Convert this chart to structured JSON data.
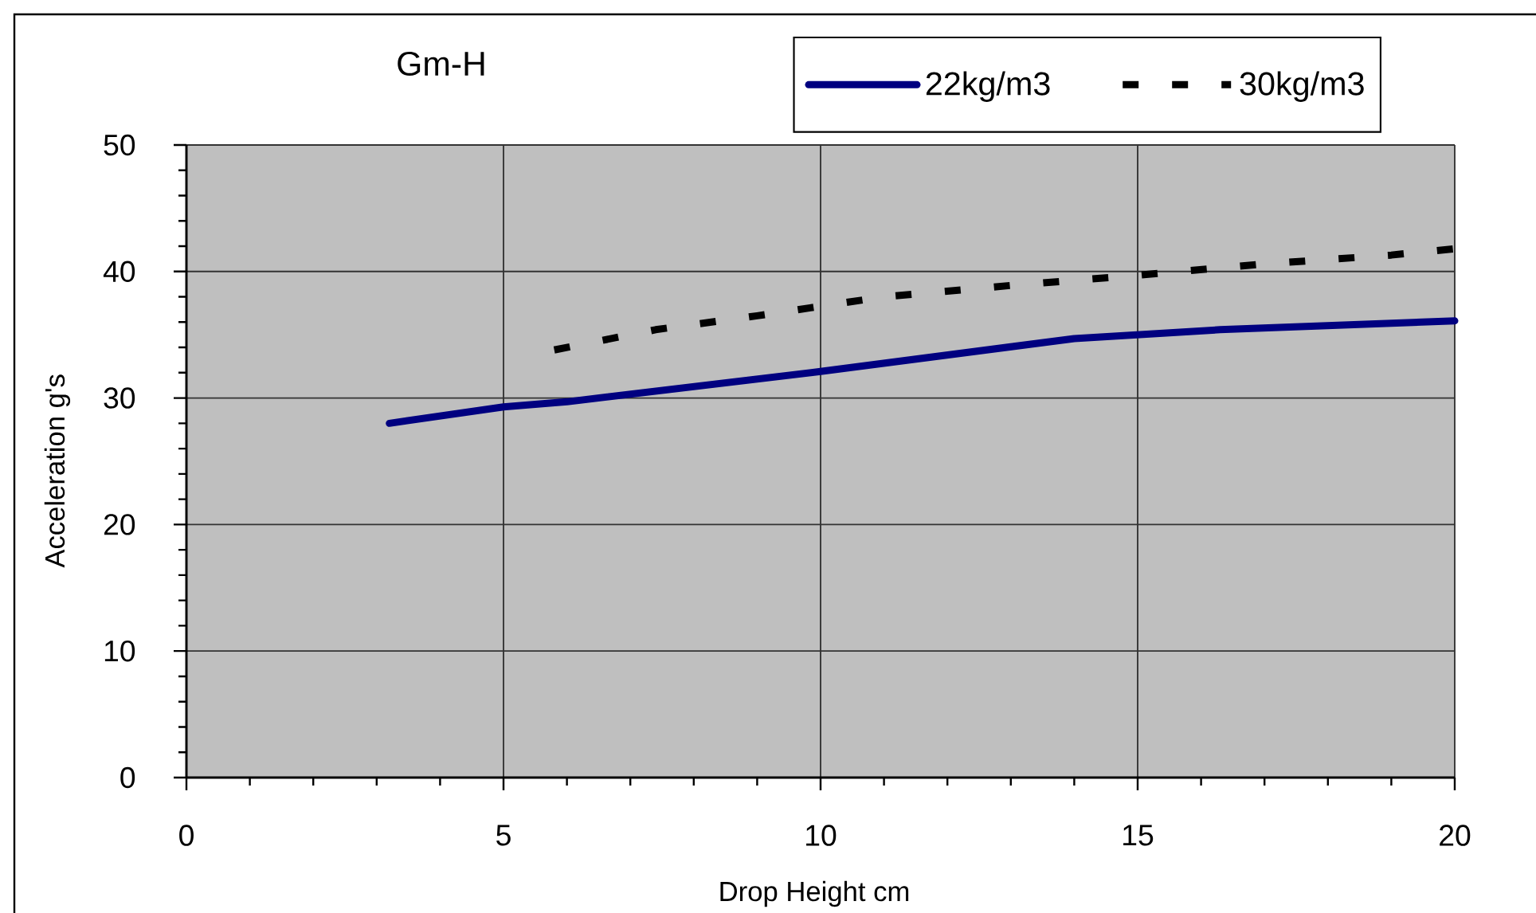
{
  "chart_data": {
    "type": "line",
    "title": "Gm-H",
    "xlabel": "Drop Height cm",
    "ylabel": "Acceleration g's",
    "xlim": [
      0,
      20
    ],
    "xticks": [
      0,
      5,
      10,
      15,
      20
    ],
    "ylim": [
      0,
      50
    ],
    "yticks": [
      0,
      10,
      20,
      30,
      40,
      50
    ],
    "grid": true,
    "legend": "top right",
    "marker": "none",
    "series": [
      {
        "name": "22kg/m3",
        "color": "#000080",
        "line_style": "solid",
        "x": [
          3.2,
          5,
          6,
          10,
          14,
          16.3,
          20
        ],
        "values": [
          28.0,
          29.3,
          29.7,
          32.1,
          34.7,
          35.4,
          36.1
        ]
      },
      {
        "name": "30kg/m3",
        "color": "#000000",
        "line_style": "dashed",
        "x": [
          5.8,
          7.4,
          9,
          11,
          13,
          15,
          17,
          19,
          20
        ],
        "values": [
          33.8,
          35.4,
          36.5,
          38.0,
          38.9,
          39.7,
          40.6,
          41.3,
          41.8
        ]
      }
    ]
  }
}
